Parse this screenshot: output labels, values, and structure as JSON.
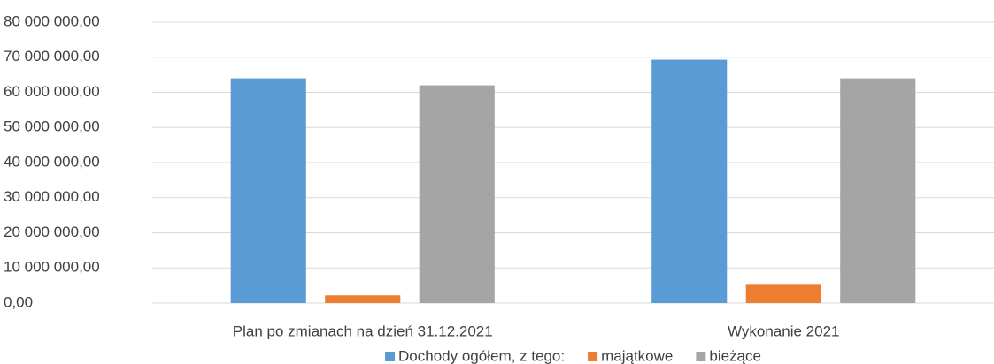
{
  "chart_data": {
    "type": "bar",
    "categories": [
      "Plan po zmianach na dzień 31.12.2021",
      "Wykonanie 2021"
    ],
    "series": [
      {
        "name": "Dochody ogółem, z tego:",
        "color": "#5b9bd5",
        "values": [
          64000000,
          69300000
        ]
      },
      {
        "name": "majątkowe",
        "color": "#ed7d31",
        "values": [
          2200000,
          5200000
        ]
      },
      {
        "name": "bieżące",
        "color": "#a5a5a5",
        "values": [
          62000000,
          64000000
        ]
      }
    ],
    "ylim": [
      0,
      80000000
    ],
    "yticks": [
      {
        "value": 0,
        "label": "0,00"
      },
      {
        "value": 10000000,
        "label": "10 000 000,00"
      },
      {
        "value": 20000000,
        "label": "20 000 000,00"
      },
      {
        "value": 30000000,
        "label": "30 000 000,00"
      },
      {
        "value": 40000000,
        "label": "40 000 000,00"
      },
      {
        "value": 50000000,
        "label": "50 000 000,00"
      },
      {
        "value": 60000000,
        "label": "60 000 000,00"
      },
      {
        "value": 70000000,
        "label": "70 000 000,00"
      },
      {
        "value": 80000000,
        "label": "80 000 000,00"
      }
    ],
    "grid": true,
    "legend": "bottom"
  }
}
